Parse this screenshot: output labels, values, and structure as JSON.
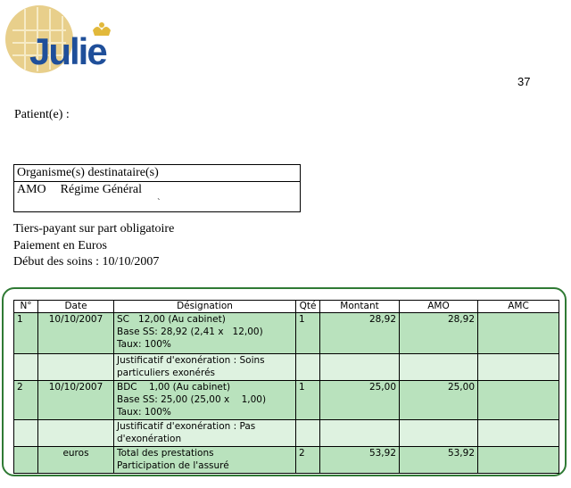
{
  "logo": {
    "text": "Julie"
  },
  "page_number": "37",
  "patient_label": "Patient(e) :",
  "organisms": {
    "header": "Organisme(s) destinataire(s)",
    "code": "AMO",
    "regime": "Régime Général",
    "mark": "`"
  },
  "info": {
    "line1": "Tiers-payant sur part obligatoire",
    "line2": "Paiement en Euros",
    "line3": "Début des soins : 10/10/2007"
  },
  "table": {
    "headers": {
      "no": "N°",
      "date": "Date",
      "designation": "Désignation",
      "qty": "Qté",
      "amount": "Montant",
      "amo": "AMO",
      "amc": "AMC"
    },
    "rows": [
      {
        "no": "1",
        "date": "10/10/2007",
        "designation": "SC   12,00 (Au cabinet)\nBase SS: 28,92 (2,41 x   12,00)\nTaux: 100%",
        "qty": "1",
        "amount": "28,92",
        "amo": "28,92",
        "amc": ""
      },
      {
        "no": "",
        "date": "",
        "designation": "Justificatif d'exonération : Soins particuliers exonérés",
        "qty": "",
        "amount": "",
        "amo": "",
        "amc": ""
      },
      {
        "no": "2",
        "date": "10/10/2007",
        "designation": "BDC    1,00 (Au cabinet)\nBase SS: 25,00 (25,00 x    1,00)\nTaux: 100%",
        "qty": "1",
        "amount": "25,00",
        "amo": "25,00",
        "amc": ""
      },
      {
        "no": "",
        "date": "",
        "designation": "Justificatif d'exonération : Pas d'exonération",
        "qty": "",
        "amount": "",
        "amo": "",
        "amc": ""
      },
      {
        "no": "",
        "date": "euros",
        "designation": "Total des prestations\nParticipation de l'assuré",
        "qty": "2",
        "amount": "53,92",
        "amo": "53,92",
        "amc": ""
      }
    ]
  }
}
